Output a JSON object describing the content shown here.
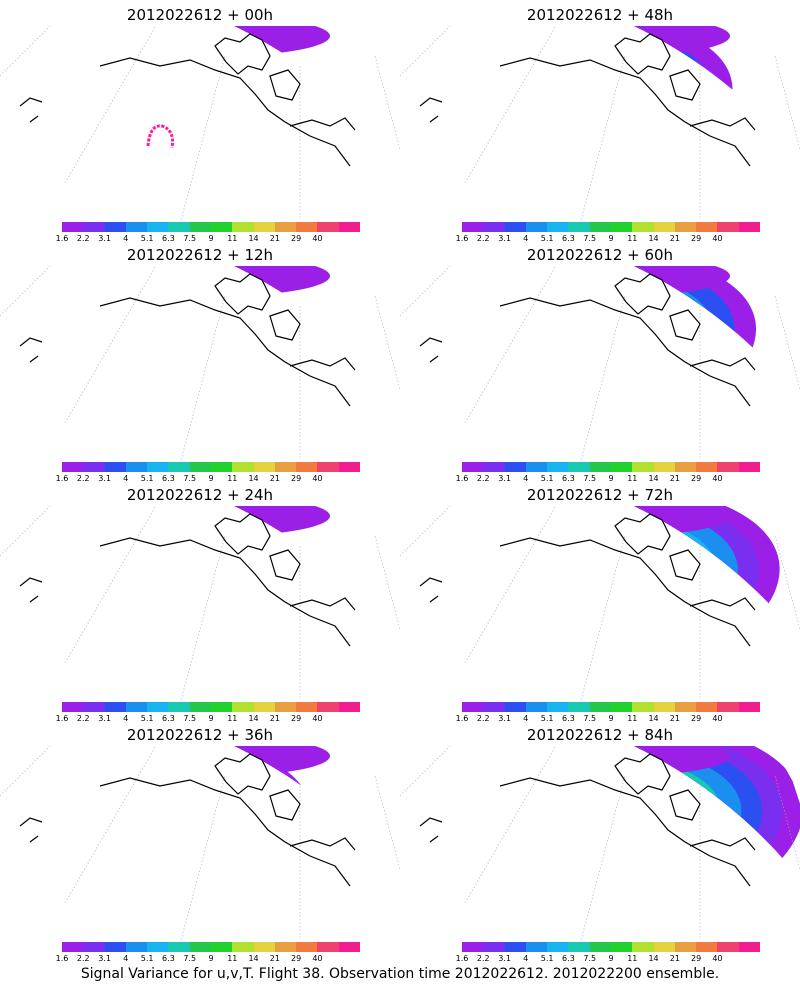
{
  "panels": [
    {
      "title": "2012022612 + 00h",
      "lead": 0
    },
    {
      "title": "2012022612 + 48h",
      "lead": 48
    },
    {
      "title": "2012022612 + 12h",
      "lead": 12
    },
    {
      "title": "2012022612 + 60h",
      "lead": 60
    },
    {
      "title": "2012022612 + 24h",
      "lead": 24
    },
    {
      "title": "2012022612 + 72h",
      "lead": 72
    },
    {
      "title": "2012022612 + 36h",
      "lead": 36
    },
    {
      "title": "2012022612 + 84h",
      "lead": 84
    }
  ],
  "legend": {
    "labels": [
      "1.6",
      "2.2",
      "3.1",
      "4",
      "5.1",
      "6.3",
      "7.5",
      "9",
      "11",
      "14",
      "21",
      "29",
      "40"
    ],
    "colors": [
      "#9b1fe6",
      "#7a2ef0",
      "#2b4ff0",
      "#1a8ff0",
      "#19b4f0",
      "#19c8b0",
      "#22c84a",
      "#22d12e",
      "#b0e030",
      "#e6d240",
      "#e6a040",
      "#f07a40",
      "#f04070",
      "#f01e90"
    ]
  },
  "caption": "Signal Variance for u,v,T. Flight 38. Observation time 2012022612. 2012022200 ensemble.",
  "colors": {
    "background": "#ffffff",
    "coastline": "#000000",
    "grid": "#aaaaaa",
    "observation_track": "#ff1aa0"
  }
}
